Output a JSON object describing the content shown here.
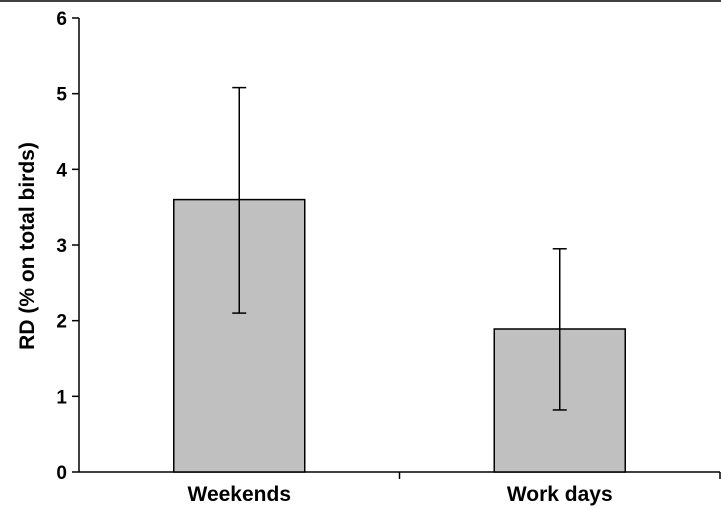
{
  "chart_data": {
    "type": "bar",
    "title": "",
    "xlabel": "",
    "ylabel": "RD (% on total birds)",
    "categories": [
      "Weekends",
      "Work days"
    ],
    "series": [
      {
        "values": [
          3.6,
          1.89
        ],
        "error_low": [
          2.1,
          0.82
        ],
        "error_high": [
          5.08,
          2.95
        ]
      }
    ],
    "ylim": [
      0,
      6
    ],
    "yticks": [
      0,
      1,
      2,
      3,
      4,
      5,
      6
    ],
    "ytick_labels": [
      "0",
      "1",
      "2",
      "3",
      "4",
      "5",
      "6"
    ],
    "grid": false,
    "legend": "none",
    "colors": {
      "bar_fill": "#c0c0c0",
      "bar_stroke": "#000000",
      "axis": "#000000",
      "error_bar": "#000000"
    }
  }
}
